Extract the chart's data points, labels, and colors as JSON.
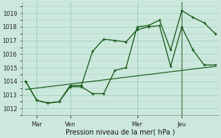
{
  "xlabel": "Pression niveau de la mer( hPa )",
  "bg_color": "#cce8dd",
  "line_color": "#1a5c1a",
  "grid_color": "#99ccbb",
  "ylim": [
    1011.5,
    1019.8
  ],
  "yticks": [
    1012,
    1013,
    1014,
    1015,
    1016,
    1017,
    1018,
    1019
  ],
  "xlim": [
    -0.3,
    17.3
  ],
  "day_labels": [
    "Mar",
    "Ven",
    "Mer",
    "Jeu"
  ],
  "day_positions": [
    1,
    4,
    10,
    14
  ],
  "series1_x": [
    0,
    1,
    2,
    3,
    4,
    5,
    6,
    7,
    8,
    9,
    10,
    11,
    12,
    13,
    14,
    15,
    16,
    17
  ],
  "series1_y": [
    1014.0,
    1012.6,
    1012.4,
    1012.5,
    1013.6,
    1013.6,
    1013.1,
    1013.1,
    1014.8,
    1015.0,
    1018.0,
    1018.1,
    1018.5,
    1016.3,
    1019.2,
    1018.7,
    1018.3,
    1017.5
  ],
  "series2_x": [
    0,
    1,
    2,
    3,
    4,
    5,
    6,
    7,
    8,
    9,
    10,
    11,
    12,
    13,
    14,
    15,
    16,
    17
  ],
  "series2_y": [
    1014.0,
    1012.6,
    1012.4,
    1012.5,
    1013.7,
    1013.7,
    1016.2,
    1017.1,
    1017.0,
    1016.9,
    1017.8,
    1018.0,
    1018.1,
    1015.1,
    1018.0,
    1016.3,
    1015.2,
    1015.2
  ],
  "trend_x": [
    0,
    17
  ],
  "trend_y": [
    1013.4,
    1015.1
  ],
  "xlabel_fontsize": 7,
  "tick_labelsize": 6,
  "figsize": [
    3.2,
    2.0
  ],
  "dpi": 100
}
